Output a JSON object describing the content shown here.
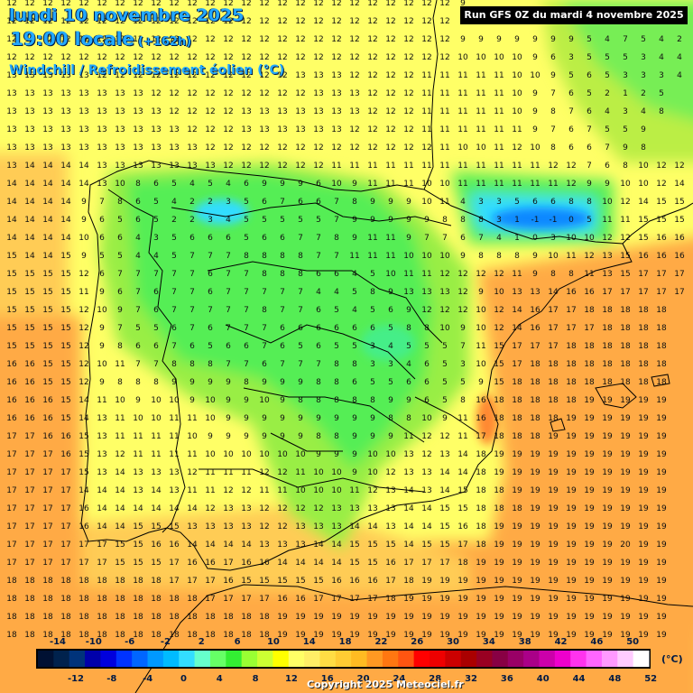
{
  "header": {
    "date": "lundi 10 novembre 2025",
    "time": "19:00 locale",
    "lead": "(+162h)",
    "parameter": "Windchill / Refroidissement éolien (°C)",
    "run": "Run GFS 0Z du mardi 4 novembre 2025"
  },
  "footer": {
    "copyright": "Copyright 2025 Meteociel.fr"
  },
  "colors": {
    "land_outline": "#000000",
    "bg_warm": "#ffaa44",
    "bg_yellow": "#ffff66",
    "green": "#55ee55",
    "cyan": "#33ddff",
    "blue": "#1188ff"
  },
  "legend": {
    "unit": "(°C)",
    "top_labels": [
      "-14",
      "-10",
      "-6",
      "-2",
      "2",
      "6",
      "10",
      "14",
      "18",
      "22",
      "26",
      "30",
      "34",
      "38",
      "42",
      "46",
      "50"
    ],
    "bottom_labels": [
      "-12",
      "-8",
      "-4",
      "0",
      "4",
      "8",
      "12",
      "16",
      "20",
      "24",
      "28",
      "32",
      "36",
      "40",
      "44",
      "48",
      "52"
    ],
    "colors": [
      "#001133",
      "#00224d",
      "#00337a",
      "#0000aa",
      "#0000dd",
      "#0033ff",
      "#0066ff",
      "#0099ff",
      "#00bbff",
      "#33ddff",
      "#66ffcc",
      "#66ff66",
      "#33ee33",
      "#99ff33",
      "#ccff33",
      "#ffff00",
      "#ffff66",
      "#ffee66",
      "#ffdd44",
      "#ffcc33",
      "#ffbb22",
      "#ff9922",
      "#ff7711",
      "#ff5511",
      "#ff0000",
      "#ee0000",
      "#cc0000",
      "#aa0000",
      "#990022",
      "#880044",
      "#990066",
      "#aa0088",
      "#cc00aa",
      "#ee00cc",
      "#ff33ee",
      "#ff66ff",
      "#ff99ff",
      "#ffccff",
      "#ffffff"
    ]
  },
  "grid": {
    "rows": [
      "12 12 12 12 12 12 12 12 12 12 12 12 12 12 12 12 12 12 12 12 12 12 12 12 12 9 9 9 9 9 9 9 9 9 9 9 9 9",
      "12 12 12 12 12 12 12 12 12 12 12 12 12 12 12 12 12 12 12 12 12 12 12 12 12 9 9 9 9 9 9 9 9 9 9 9 9 9",
      "12 12 12 12 12 12 12 12 12 12 12 12 12 12 12 12 12 12 12 12 12 12 12 12 12 9 9 9 9 9 9 9 5 4 7 5 4 2",
      "12 12 12 12 12 12 12 12 12 12 12 12 12 12 12 12 12 12 12 12 12 12 12 12 12 10 10 10 10 9 6 3 5 5 5 3 4 4",
      "13 13 13 13 13 12 12 12 12 12 12 12 12 12 12 12 13 13 13 12 12 12 12 11 11 11 11 11 10 10 9 5 6 5 3 3 3 4",
      "13 13 13 13 13 13 13 13 12 12 12 12 12 12 12 12 12 13 13 13 12 12 12 11 11 11 11 11 10 9 7 6 5 2 1 2 5",
      "13 13 13 13 13 13 13 13 13 12 12 12 12 13 13 13 13 13 13 13 12 12 12 11 11 11 11 11 10 9 8 7 6 4 3 4 8",
      "13 13 13 13 13 13 13 13 13 13 12 12 12 13 13 13 13 13 13 12 12 12 12 11 11 11 11 11 11 9 7 6 7 5 5 9",
      "13 13 13 13 13 13 13 13 13 13 13 12 12 12 12 12 12 12 12 12 12 12 12 12 11 10 10 11 12 10 8 6 6 7 9 8",
      "13 14 14 14 14 13 13 13 13 13 13 13 12 12 12 12 12 12 11 11 11 11 11 11 11 11 11 11 11 11 12 12 7 6 8 10 12 12",
      "14 14 14 14 14 13 10 8 6 5 4 5 4 6 9 9 9 6 10 9 11 11 11 10 10 11 11 11 11 11 11 12 9 9 10 10 12 14",
      "14 14 14 14 9 7 8 6 5 4 2 2 3 5 6 7 6 6 7 8 9 9 9 10 11 4 3 3 5 6 6 8 8 10 12 14 15 15",
      "14 14 14 14 9 6 5 6 5 2 2 3 4 5 5 5 5 5 7 9 9 9 9 9 8 8 8 3 1 -1 -1 0 5 11 11 15 15 15",
      "14 14 14 14 10 6 6 4 3 5 6 6 6 5 6 6 7 7 8 9 11 11 9 7 7 6 7 4 1 0 3 10 10 12 12 15 16 16",
      "15 14 14 15 9 5 5 4 4 5 7 7 7 8 8 8 8 7 7 11 11 11 10 10 10 9 8 8 8 9 10 11 12 13 15 16 16 16",
      "15 15 15 15 12 6 7 7 7 7 7 6 7 7 8 8 8 6 6 4 5 10 11 11 12 12 12 12 11 9 8 8 11 13 15 17 17 17",
      "15 15 15 15 11 9 6 7 6 7 7 6 7 7 7 7 7 4 4 5 8 9 13 13 13 12 9 10 13 13 14 16 16 17 17 17 17 17",
      "15 15 15 15 12 10 9 7 6 7 7 7 7 7 8 7 7 6 5 4 5 6 9 12 12 12 10 12 14 16 17 17 18 18 18 18 18",
      "15 15 15 15 12 9 7 5 5 6 7 6 7 7 7 6 6 6 6 6 6 5 8 8 10 9 10 12 14 16 17 17 17 18 18 18 18",
      "15 15 15 15 12 9 8 6 6 7 6 5 6 6 7 6 5 6 5 5 3 4 5 5 5 7 11 15 17 17 17 18 18 18 18 18 18",
      "16 16 15 15 12 10 11 7 7 8 8 8 7 7 6 7 7 7 8 8 3 3 4 6 5 3 10 15 17 18 18 18 18 18 18 18 18",
      "16 16 15 15 12 9 8 8 8 9 9 9 9 8 9 9 9 8 8 6 5 5 6 6 5 5 9 15 18 18 18 18 18 18 18 18 18",
      "16 16 16 15 14 11 10 9 10 10 9 10 9 9 10 9 8 8 8 8 8 9 9 6 5 8 16 18 18 18 18 18 19 19 19 19 19",
      "16 16 16 15 14 13 11 10 10 11 11 10 9 9 9 9 9 9 9 9 9 8 8 10 9 11 16 18 18 18 18 19 19 19 19 19 19",
      "17 17 16 16 15 13 11 11 11 11 10 9 9 9 9 9 9 8 8 9 9 9 11 12 12 11 17 18 18 18 19 19 19 19 19 19 19",
      "17 17 17 16 15 13 12 11 11 11 11 10 10 10 10 10 10 9 9 9 10 10 13 12 13 14 18 19 19 19 19 19 19 19 19 19 19",
      "17 17 17 17 15 13 14 13 13 13 12 11 11 11 12 12 11 10 10 9 10 12 13 13 14 14 18 19 19 19 19 19 19 19 19 19 19",
      "17 17 17 17 14 14 14 13 14 13 11 11 12 12 11 11 10 10 10 11 12 13 14 13 14 15 18 18 19 19 19 19 19 19 19 19 19",
      "17 17 17 17 16 14 14 14 14 14 14 12 13 13 12 12 12 12 13 13 13 13 14 14 15 15 18 18 18 19 19 19 19 19 19 19 19",
      "17 17 17 17 16 14 14 15 15 15 13 13 13 13 12 12 13 13 13 14 14 13 14 14 15 16 18 19 19 19 19 19 19 19 19 19 19",
      "17 17 17 17 17 17 15 15 16 16 14 14 14 14 13 13 13 14 14 15 15 15 14 15 15 17 18 19 19 19 19 19 19 19 20 19 19",
      "17 17 17 17 17 17 15 15 15 17 16 16 17 16 16 14 14 14 14 15 15 16 17 17 17 18 19 19 19 19 19 19 19 19 19 19 19",
      "18 18 18 18 18 18 18 18 18 17 17 17 16 15 15 15 15 15 16 16 16 17 18 19 19 19 19 19 19 19 19 19 19 19 19 19 19",
      "18 18 18 18 18 18 18 18 18 18 18 17 17 17 17 16 16 17 17 17 17 18 19 19 19 19 19 19 19 19 19 19 19 19 19 19 19",
      "18 18 18 18 18 18 18 18 18 18 18 18 18 18 18 19 19 19 19 19 19 19 19 19 19 19 19 19 19 19 19 19 19 19 19 19 19",
      "18 18 18 18 18 18 18 18 18 18 18 18 18 18 18 19 19 19 19 19 19 19 19 19 19 19 19 19 19 19 19 19 19 19 19 19 19",
      "19 19 19 19 19 19 19 19 19 19 19 19 19 19 19 19 19 19 19 19 19 19 19 19 19 19 19 19 19 19 19 19 19 19 19 19 19",
      "19 19 19 19 19 19 19 19 19 19 19 19 19 19 19 19 19 19 19 19 19 19 19 19 19 19 19 19 19 19 19 19 19 19 19 19 19"
    ]
  }
}
